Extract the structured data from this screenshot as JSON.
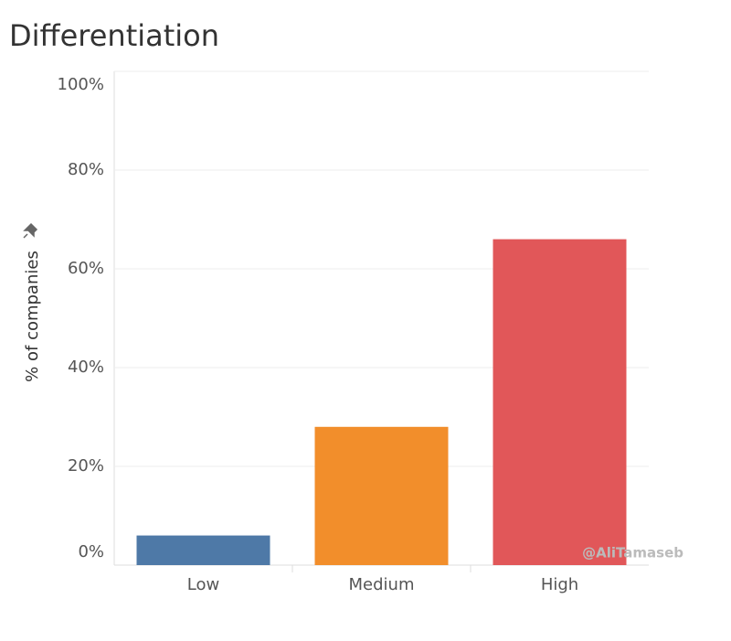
{
  "chart_data": {
    "type": "bar",
    "title": "Differentiation",
    "y_label": "% of companies",
    "categories": [
      "Low",
      "Medium",
      "High"
    ],
    "values": [
      6,
      28,
      66
    ],
    "colors": [
      "#4e79a7",
      "#f28e2b",
      "#e15759"
    ],
    "ylim": [
      0,
      100
    ],
    "yticks": [
      {
        "value": 0,
        "label": "0%"
      },
      {
        "value": 20,
        "label": "20%"
      },
      {
        "value": 40,
        "label": "40%"
      },
      {
        "value": 60,
        "label": "60%"
      },
      {
        "value": 80,
        "label": "80%"
      },
      {
        "value": 100,
        "label": "100%"
      }
    ],
    "grid": true,
    "annotation": "@AliTamaseb"
  }
}
